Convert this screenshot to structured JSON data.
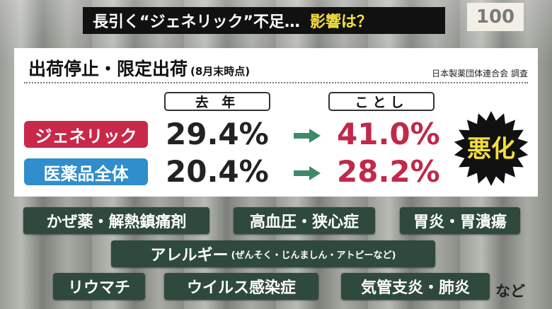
{
  "banner": {
    "title": "長引く“ジェネリック”不足…",
    "highlight": "影響は？"
  },
  "shelf_tag": "100",
  "panel": {
    "title": "出荷停止・限定出荷",
    "subtitle": "(8月末時点)",
    "source": "日本製薬団体連合会 調査",
    "columns": {
      "last_year": "去 年",
      "this_year": "ことし"
    },
    "rows": [
      {
        "label": "ジェネリック",
        "last_year": "29.4%",
        "this_year": "41.0%",
        "label_color": "#c8294a"
      },
      {
        "label": "医薬品全体",
        "last_year": "20.4%",
        "this_year": "28.2%",
        "label_color": "#2f8ecb"
      }
    ],
    "verdict": "悪化",
    "accent_colors": {
      "verdict_fill": "#111111",
      "verdict_text": "#f3df3c",
      "arrow": "#3d8a6a"
    }
  },
  "categories": [
    {
      "label": "かぜ薬・解熱鎮痛剤"
    },
    {
      "label": "高血圧・狭心症"
    },
    {
      "label": "胃炎・胃潰瘍"
    },
    {
      "label": "アレルギー",
      "note": "(ぜんそく・じんましん・アトピーなど)"
    },
    {
      "label": "リウマチ"
    },
    {
      "label": "ウイルス感染症"
    },
    {
      "label": "気管支炎・肺炎"
    }
  ],
  "categories_suffix": "など"
}
